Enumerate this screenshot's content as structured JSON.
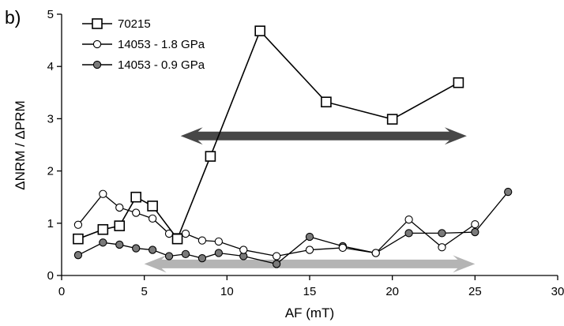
{
  "chart_data": {
    "type": "line",
    "panel_label": "b)",
    "xlabel": "AF (mT)",
    "ylabel": "ΔNRM / ΔPRM",
    "xlim": [
      0,
      30
    ],
    "ylim": [
      0,
      5
    ],
    "x_ticks": [
      "0",
      "5",
      "10",
      "15",
      "20",
      "25",
      "30"
    ],
    "y_ticks": [
      "0",
      "1",
      "2",
      "3",
      "4",
      "5"
    ],
    "grid": false,
    "legend_position": "top-left",
    "series": [
      {
        "name": "70215",
        "marker": "open-square",
        "points": [
          [
            1,
            0.7
          ],
          [
            2.5,
            0.88
          ],
          [
            3.5,
            0.95
          ],
          [
            4.5,
            1.5
          ],
          [
            5.5,
            1.33
          ],
          [
            7,
            0.7
          ],
          [
            9,
            2.28
          ],
          [
            12,
            4.68
          ],
          [
            16,
            3.32
          ],
          [
            20,
            2.99
          ],
          [
            24,
            3.69
          ]
        ]
      },
      {
        "name": "14053  - 1.8 GPa",
        "marker": "open-circle",
        "points": [
          [
            1,
            0.97
          ],
          [
            2.5,
            1.56
          ],
          [
            3.5,
            1.3
          ],
          [
            4.5,
            1.2
          ],
          [
            5.5,
            1.09
          ],
          [
            6.5,
            0.8
          ],
          [
            7.5,
            0.8
          ],
          [
            8.5,
            0.67
          ],
          [
            9.5,
            0.65
          ],
          [
            11,
            0.49
          ],
          [
            13,
            0.37
          ],
          [
            15,
            0.49
          ],
          [
            17,
            0.53
          ],
          [
            19,
            0.43
          ],
          [
            21,
            1.07
          ],
          [
            23,
            0.54
          ],
          [
            25,
            0.98
          ]
        ]
      },
      {
        "name": "14053 - 0.9 GPa",
        "marker": "filled-circle",
        "points": [
          [
            1,
            0.39
          ],
          [
            2.5,
            0.63
          ],
          [
            3.5,
            0.59
          ],
          [
            4.5,
            0.52
          ],
          [
            5.5,
            0.49
          ],
          [
            6.5,
            0.37
          ],
          [
            7.5,
            0.41
          ],
          [
            8.5,
            0.33
          ],
          [
            9.5,
            0.43
          ],
          [
            11,
            0.37
          ],
          [
            13,
            0.22
          ],
          [
            15,
            0.74
          ],
          [
            17,
            0.56
          ],
          [
            19,
            0.43
          ],
          [
            21,
            0.81
          ],
          [
            23,
            0.81
          ],
          [
            25,
            0.83
          ],
          [
            27,
            1.6
          ]
        ]
      }
    ],
    "arrows": [
      {
        "x_from": 7.2,
        "x_to": 24.5,
        "y": 2.67,
        "color": "#474747"
      },
      {
        "x_from": 5.0,
        "x_to": 25.0,
        "y": 0.22,
        "color": "#b4b4b4"
      }
    ],
    "colors": {
      "axis": "#000000",
      "series_line": "#000000",
      "open_marker_fill": "#ffffff",
      "filled_marker_fill": "#7a7a7a"
    }
  }
}
